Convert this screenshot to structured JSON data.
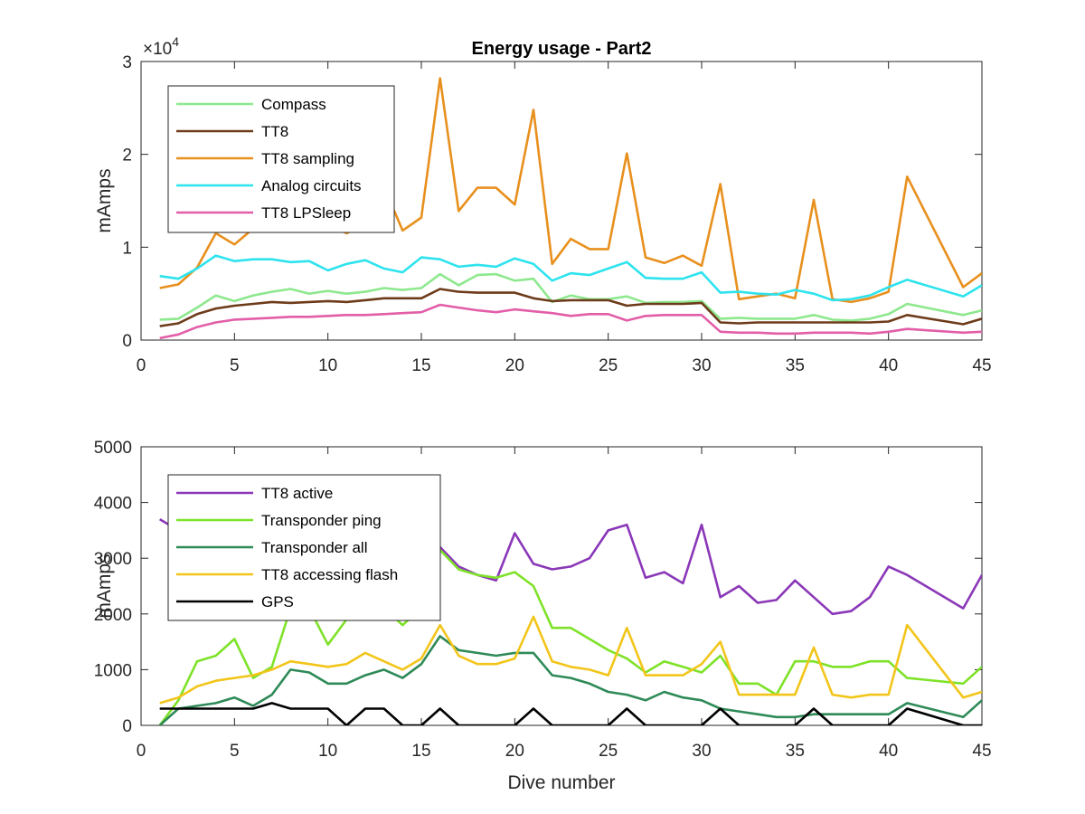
{
  "chart_data": [
    {
      "type": "line",
      "title": "Energy usage - Part2",
      "xlabel": "",
      "ylabel": "mAmps",
      "exponent_label": "×10",
      "exponent_power": "4",
      "xlim": [
        0,
        45
      ],
      "ylim": [
        0,
        30000
      ],
      "xticks": [
        0,
        5,
        10,
        15,
        20,
        25,
        30,
        35,
        40,
        45
      ],
      "yticks": [
        0,
        10000,
        20000,
        30000
      ],
      "ytick_labels": [
        "0",
        "1",
        "2",
        "3"
      ],
      "grid": false,
      "legend_position": "top-left",
      "x": [
        1,
        2,
        3,
        4,
        5,
        6,
        7,
        8,
        9,
        10,
        11,
        12,
        13,
        14,
        15,
        16,
        17,
        18,
        19,
        20,
        21,
        22,
        23,
        24,
        25,
        26,
        27,
        28,
        29,
        30,
        31,
        32,
        33,
        34,
        35,
        36,
        37,
        38,
        39,
        40,
        41,
        44,
        45
      ],
      "series": [
        {
          "name": "Compass",
          "color": "#8ee88e",
          "values": [
            2200,
            2300,
            3500,
            4800,
            4200,
            4800,
            5200,
            5500,
            5000,
            5300,
            5000,
            5200,
            5600,
            5400,
            5600,
            7100,
            5900,
            7000,
            7100,
            6400,
            6600,
            4100,
            4800,
            4400,
            4400,
            4700,
            4000,
            4100,
            4100,
            4200,
            2300,
            2400,
            2300,
            2300,
            2300,
            2700,
            2200,
            2100,
            2300,
            2800,
            3900,
            2700,
            3200
          ]
        },
        {
          "name": "TT8",
          "color": "#6e3b1a",
          "values": [
            1500,
            1800,
            2800,
            3400,
            3700,
            3900,
            4100,
            4000,
            4100,
            4200,
            4100,
            4300,
            4500,
            4500,
            4500,
            5500,
            5200,
            5100,
            5100,
            5100,
            4500,
            4200,
            4300,
            4300,
            4300,
            3700,
            3900,
            3900,
            3900,
            4000,
            1900,
            1800,
            1900,
            1900,
            1900,
            1900,
            1900,
            1900,
            1900,
            2000,
            2700,
            1700,
            2300
          ]
        },
        {
          "name": "TT8 sampling",
          "color": "#e8901e",
          "values": [
            5600,
            6000,
            7800,
            11500,
            10300,
            12000,
            13000,
            12500,
            13500,
            12500,
            11500,
            12500,
            16500,
            11800,
            13200,
            28200,
            13900,
            16400,
            16400,
            14600,
            24800,
            8200,
            10900,
            9800,
            9800,
            20100,
            8900,
            8300,
            9100,
            8000,
            16800,
            4400,
            4700,
            5000,
            4500,
            15100,
            4400,
            4100,
            4500,
            5200,
            17600,
            5700,
            7200
          ]
        },
        {
          "name": "Analog circuits",
          "color": "#2ee3ee",
          "values": [
            6900,
            6600,
            7700,
            9100,
            8500,
            8700,
            8700,
            8400,
            8500,
            7500,
            8200,
            8600,
            7700,
            7300,
            8900,
            8700,
            7900,
            8100,
            7900,
            8800,
            8200,
            6400,
            7200,
            7000,
            7700,
            8400,
            6700,
            6600,
            6600,
            7300,
            5100,
            5200,
            5000,
            4900,
            5400,
            5000,
            4300,
            4400,
            4800,
            5700,
            6500,
            4700,
            5900
          ]
        },
        {
          "name": "TT8 LPSleep",
          "color": "#e25ea8",
          "values": [
            200,
            600,
            1400,
            1900,
            2200,
            2300,
            2400,
            2500,
            2500,
            2600,
            2700,
            2700,
            2800,
            2900,
            3000,
            3800,
            3500,
            3200,
            3000,
            3300,
            3100,
            2900,
            2600,
            2800,
            2800,
            2100,
            2600,
            2700,
            2700,
            2700,
            900,
            800,
            800,
            700,
            700,
            800,
            800,
            800,
            700,
            900,
            1200,
            800,
            900
          ]
        }
      ]
    },
    {
      "type": "line",
      "title": "",
      "xlabel": "Dive number",
      "ylabel": "mAmps",
      "xlim": [
        0,
        45
      ],
      "ylim": [
        0,
        5000
      ],
      "xticks": [
        0,
        5,
        10,
        15,
        20,
        25,
        30,
        35,
        40,
        45
      ],
      "yticks": [
        0,
        1000,
        2000,
        3000,
        4000,
        5000
      ],
      "ytick_labels": [
        "0",
        "1000",
        "2000",
        "3000",
        "4000",
        "5000"
      ],
      "grid": false,
      "legend_position": "top-left",
      "x": [
        1,
        2,
        3,
        4,
        5,
        6,
        7,
        8,
        9,
        10,
        11,
        12,
        13,
        14,
        15,
        16,
        17,
        18,
        19,
        20,
        21,
        22,
        23,
        24,
        25,
        26,
        27,
        28,
        29,
        30,
        31,
        32,
        33,
        34,
        35,
        36,
        37,
        38,
        39,
        40,
        41,
        44,
        45
      ],
      "series": [
        {
          "name": "TT8 active",
          "color": "#8a37b8",
          "values": [
            3700,
            3500,
            3800,
            4000,
            3900,
            3700,
            3600,
            3500,
            3300,
            3200,
            3150,
            3100,
            3100,
            3100,
            3000,
            3200,
            2850,
            2700,
            2600,
            3450,
            2900,
            2800,
            2850,
            3000,
            3500,
            3600,
            2650,
            2750,
            2550,
            3600,
            2300,
            2500,
            2200,
            2250,
            2600,
            2300,
            2000,
            2050,
            2300,
            2850,
            2700,
            2100,
            2700
          ]
        },
        {
          "name": "Transponder ping",
          "color": "#7ee228",
          "values": [
            0,
            450,
            1150,
            1250,
            1550,
            850,
            1050,
            2100,
            2100,
            1450,
            1900,
            2150,
            2100,
            1800,
            2100,
            3150,
            2800,
            2700,
            2650,
            2750,
            2500,
            1750,
            1750,
            1550,
            1350,
            1200,
            950,
            1150,
            1050,
            950,
            1250,
            750,
            750,
            550,
            1150,
            1150,
            1050,
            1050,
            1150,
            1150,
            850,
            750,
            1050
          ]
        },
        {
          "name": "Transponder all",
          "color": "#2e8a57",
          "values": [
            0,
            300,
            350,
            400,
            500,
            350,
            550,
            1000,
            950,
            750,
            750,
            900,
            1000,
            850,
            1100,
            1600,
            1350,
            1300,
            1250,
            1300,
            1300,
            900,
            850,
            750,
            600,
            550,
            450,
            600,
            500,
            450,
            300,
            250,
            200,
            150,
            150,
            200,
            200,
            200,
            200,
            200,
            400,
            150,
            450
          ]
        },
        {
          "name": "TT8 accessing flash",
          "color": "#f2c51a",
          "values": [
            400,
            500,
            700,
            800,
            850,
            900,
            1000,
            1150,
            1100,
            1050,
            1100,
            1300,
            1150,
            1000,
            1200,
            1800,
            1250,
            1100,
            1100,
            1200,
            1950,
            1150,
            1050,
            1000,
            900,
            1750,
            900,
            900,
            900,
            1100,
            1500,
            550,
            550,
            550,
            550,
            1400,
            550,
            500,
            550,
            550,
            1800,
            500,
            600
          ]
        },
        {
          "name": "GPS",
          "color": "#000000",
          "values": [
            300,
            300,
            300,
            300,
            300,
            300,
            400,
            300,
            300,
            300,
            0,
            300,
            300,
            0,
            0,
            300,
            0,
            0,
            0,
            0,
            300,
            0,
            0,
            0,
            0,
            300,
            0,
            0,
            0,
            0,
            300,
            0,
            0,
            0,
            0,
            300,
            0,
            0,
            0,
            0,
            300,
            0,
            0
          ]
        }
      ]
    }
  ]
}
